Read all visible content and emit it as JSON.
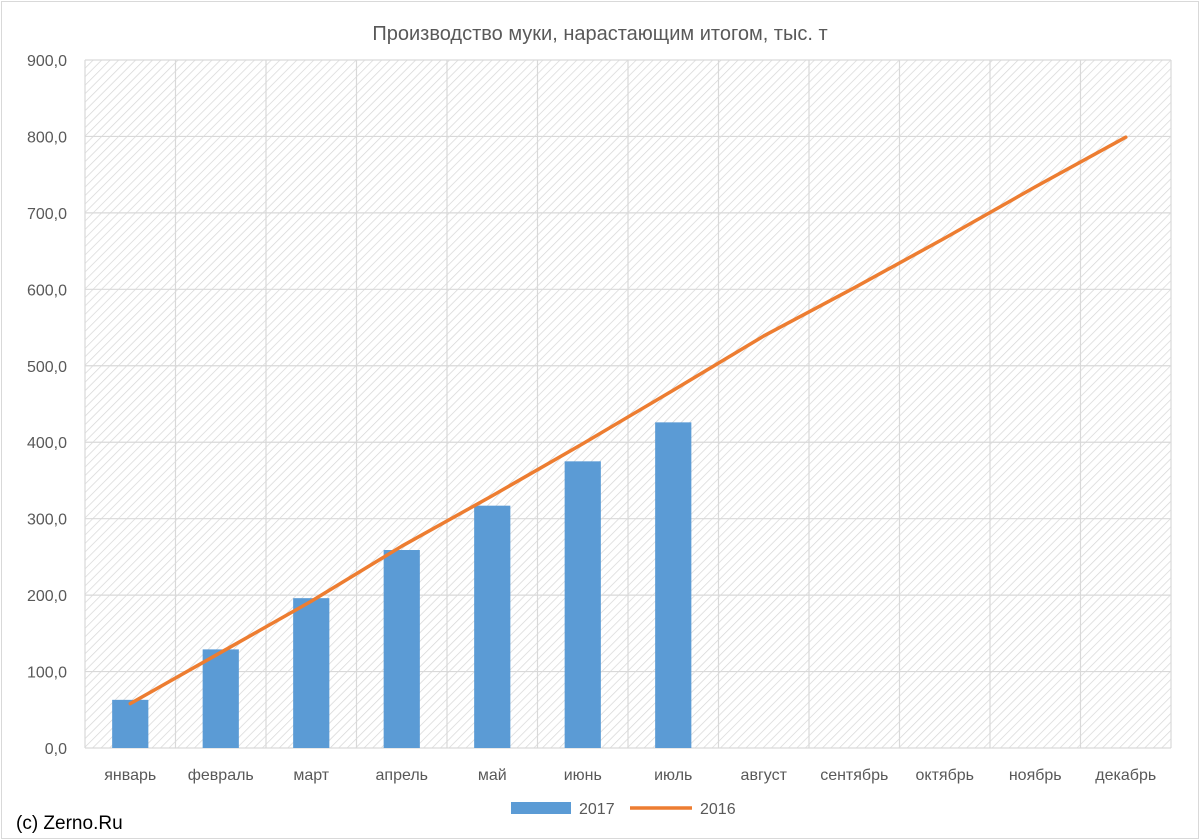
{
  "chart_data": {
    "type": "bar",
    "title": "Производство муки, нарастающим итогом, тыс. т",
    "categories": [
      "январь",
      "февраль",
      "март",
      "апрель",
      "май",
      "июнь",
      "июль",
      "август",
      "сентябрь",
      "октябрь",
      "ноябрь",
      "декабрь"
    ],
    "series": [
      {
        "name": "2017",
        "type": "bar",
        "color": "#5b9bd5",
        "values": [
          63,
          129,
          196,
          259,
          317,
          375,
          426,
          null,
          null,
          null,
          null,
          null
        ]
      },
      {
        "name": "2016",
        "type": "line",
        "color": "#ed7d31",
        "values": [
          58,
          125,
          192,
          264,
          330,
          398,
          468,
          539,
          602,
          667,
          734,
          799
        ]
      }
    ],
    "ylim": [
      0,
      900
    ],
    "yticks": [
      0,
      100,
      200,
      300,
      400,
      500,
      600,
      700,
      800,
      900
    ],
    "ytick_labels": [
      "0,0",
      "100,0",
      "200,0",
      "300,0",
      "400,0",
      "500,0",
      "600,0",
      "700,0",
      "800,0",
      "900,0"
    ],
    "grid": true,
    "plot_background": "diagonal-hatch",
    "legend_position": "bottom"
  },
  "watermark": "(c) Zerno.Ru"
}
